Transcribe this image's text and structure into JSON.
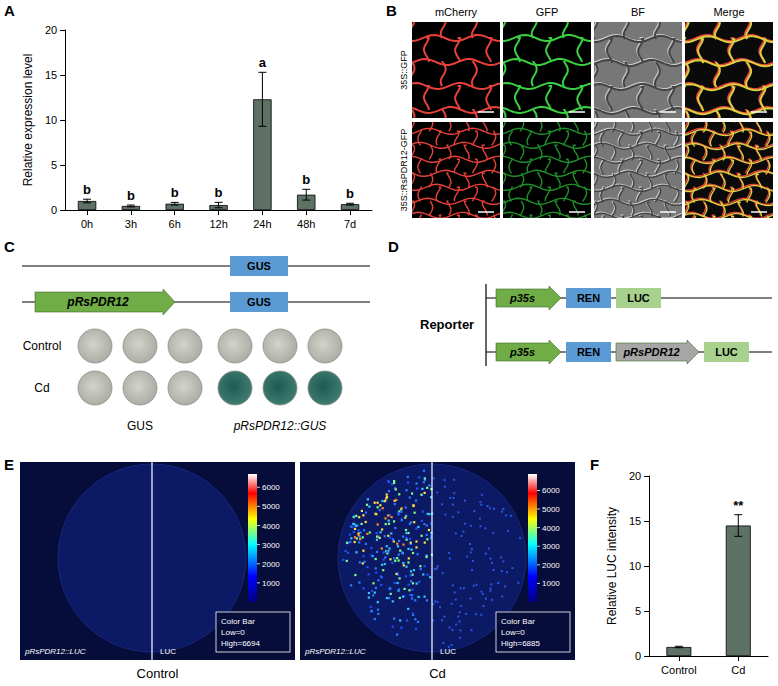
{
  "panel_letters": [
    "A",
    "B",
    "C",
    "D",
    "E",
    "F"
  ],
  "chart_data": [
    {
      "type": "bar",
      "categories": [
        "0h",
        "3h",
        "6h",
        "12h",
        "24h",
        "48h",
        "7d"
      ],
      "values": [
        1.0,
        0.45,
        0.7,
        0.55,
        12.3,
        1.7,
        0.65
      ],
      "errors": [
        0.2,
        0.1,
        0.15,
        0.3,
        3.0,
        0.6,
        0.1
      ],
      "significance": [
        "b",
        "b",
        "b",
        "b",
        "a",
        "b",
        "b"
      ],
      "y_label": "Relative expression level",
      "ylim": [
        0,
        20
      ],
      "yticks": [
        0,
        5,
        10,
        15,
        20
      ],
      "color": "#5d7265",
      "grid": false
    },
    {
      "type": "bar",
      "categories": [
        "Control",
        "Cd"
      ],
      "values": [
        1.0,
        14.5
      ],
      "errors": [
        0.08,
        1.2
      ],
      "significance": [
        null,
        "**"
      ],
      "y_label": "Relative LUC intensity",
      "ylim": [
        0,
        20
      ],
      "yticks": [
        0,
        5,
        10,
        15,
        20
      ],
      "color": "#5d7265",
      "grid": false
    }
  ],
  "microscopy": {
    "columns": [
      "mCherry",
      "GFP",
      "BF",
      "Merge"
    ],
    "rows": [
      "35S::GFP",
      "35S::RsPDR12-GFP"
    ]
  },
  "gus_assay": {
    "constructs": [
      [
        "GUS"
      ],
      [
        "pRsPDR12",
        "GUS"
      ]
    ],
    "rows": [
      "Control",
      "Cd"
    ],
    "columns": [
      "GUS",
      "pRsPDR12::GUS"
    ]
  },
  "reporter": {
    "label": "Reporter",
    "constructs": [
      [
        "p35s",
        "REN",
        "LUC"
      ],
      [
        "p35s",
        "REN",
        "pRsPDR12",
        "LUC"
      ]
    ]
  },
  "luc_imaging": [
    {
      "caption": "Control",
      "left_label": "pRsPDR12::LUC",
      "right_label": "LUC",
      "colorbar": {
        "title": "Color Bar",
        "low_label": "Low=0",
        "high_label": "High=6694",
        "range": [
          0,
          6694
        ],
        "ticks": [
          1000,
          2000,
          3000,
          4000,
          5000,
          6000
        ]
      }
    },
    {
      "caption": "Cd",
      "left_label": "pRsPDR12::LUC",
      "right_label": "LUC",
      "colorbar": {
        "title": "Color Bar",
        "low_label": "Low=0",
        "high_label": "High=6885",
        "range": [
          0,
          6885
        ],
        "ticks": [
          1000,
          2000,
          3000,
          4000,
          5000,
          6000
        ]
      }
    }
  ]
}
